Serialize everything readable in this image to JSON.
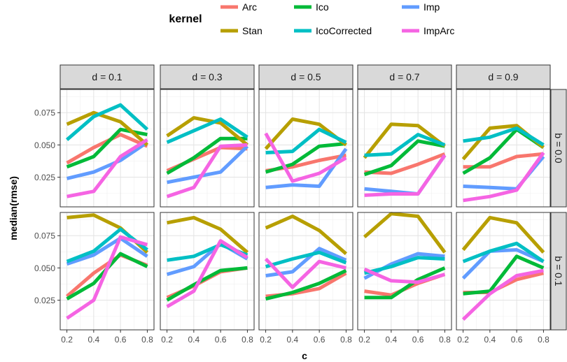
{
  "chart_data": {
    "type": "line",
    "legend": {
      "title": "kernel",
      "position": "top",
      "entries": [
        {
          "name": "Arc",
          "color": "#F8766D"
        },
        {
          "name": "Ico",
          "color": "#00BA38"
        },
        {
          "name": "Imp",
          "color": "#619CFF"
        },
        {
          "name": "Stan",
          "color": "#B79F00"
        },
        {
          "name": "IcoCorrected",
          "color": "#00BFC4"
        },
        {
          "name": "ImpArc",
          "color": "#F564E3"
        }
      ]
    },
    "xlabel": "c",
    "ylabel": "median(rmse)",
    "x": [
      0.2,
      0.4,
      0.6,
      0.8
    ],
    "xticks": [
      "0.2",
      "0.4",
      "0.6",
      "0.8"
    ],
    "xlim": [
      0.15,
      0.85
    ],
    "yticks": [
      "0.025",
      "0.050",
      "0.075"
    ],
    "ytick_values": [
      0.025,
      0.05,
      0.075
    ],
    "ylim": [
      0.002,
      0.093
    ],
    "grid": true,
    "col_facets": [
      "d = 0.1",
      "d = 0.3",
      "d = 0.5",
      "d = 0.7",
      "d = 0.9"
    ],
    "row_facets": [
      "b = 0.0",
      "b = 0.1"
    ],
    "panels": [
      [
        {
          "Arc": [
            0.036,
            0.048,
            0.058,
            0.049
          ],
          "Ico": [
            0.033,
            0.041,
            0.062,
            0.058
          ],
          "Imp": [
            0.024,
            0.029,
            0.038,
            0.052
          ],
          "Stan": [
            0.066,
            0.075,
            0.068,
            0.05
          ],
          "IcoCorrected": [
            0.054,
            0.072,
            0.081,
            0.062
          ],
          "ImpArc": [
            0.01,
            0.014,
            0.041,
            0.054
          ]
        },
        {
          "Arc": [
            0.03,
            0.039,
            0.048,
            0.047
          ],
          "Ico": [
            0.028,
            0.04,
            0.055,
            0.055
          ],
          "Imp": [
            0.021,
            0.025,
            0.029,
            0.049
          ],
          "Stan": [
            0.057,
            0.071,
            0.067,
            0.05
          ],
          "IcoCorrected": [
            0.052,
            0.061,
            0.07,
            0.056
          ],
          "ImpArc": [
            0.01,
            0.017,
            0.049,
            0.05
          ]
        },
        {
          "Arc": [
            0.03,
            0.033,
            0.038,
            0.042
          ],
          "Ico": [
            0.029,
            0.035,
            0.049,
            0.051
          ],
          "Imp": [
            0.017,
            0.019,
            0.018,
            0.047
          ],
          "Stan": [
            0.047,
            0.07,
            0.066,
            0.05
          ],
          "IcoCorrected": [
            0.044,
            0.045,
            0.062,
            0.052
          ],
          "ImpArc": [
            0.059,
            0.022,
            0.028,
            0.04
          ]
        },
        {
          "Arc": [
            0.029,
            0.028,
            0.035,
            0.043
          ],
          "Ico": [
            0.027,
            0.034,
            0.053,
            0.049
          ],
          "Imp": [
            0.016,
            0.014,
            0.012,
            0.042
          ],
          "Stan": [
            0.04,
            0.066,
            0.065,
            0.049
          ],
          "IcoCorrected": [
            0.042,
            0.043,
            0.058,
            0.05
          ],
          "ImpArc": [
            0.011,
            0.012,
            0.012,
            0.042
          ]
        },
        {
          "Arc": [
            0.033,
            0.033,
            0.041,
            0.043
          ],
          "Ico": [
            0.028,
            0.04,
            0.062,
            0.048
          ],
          "Imp": [
            0.018,
            0.017,
            0.016,
            0.041
          ],
          "Stan": [
            0.039,
            0.063,
            0.065,
            0.048
          ],
          "IcoCorrected": [
            0.053,
            0.056,
            0.063,
            0.05
          ],
          "ImpArc": [
            0.007,
            0.01,
            0.015,
            0.044
          ]
        }
      ],
      [
        {
          "Arc": [
            0.028,
            0.046,
            0.06,
            0.052
          ],
          "Ico": [
            0.026,
            0.038,
            0.061,
            0.051
          ],
          "Imp": [
            0.053,
            0.06,
            0.073,
            0.059
          ],
          "Stan": [
            0.089,
            0.091,
            0.081,
            0.062
          ],
          "IcoCorrected": [
            0.055,
            0.063,
            0.08,
            0.064
          ],
          "ImpArc": [
            0.011,
            0.025,
            0.074,
            0.068
          ]
        },
        {
          "Arc": [
            0.027,
            0.036,
            0.047,
            0.05
          ],
          "Ico": [
            0.025,
            0.037,
            0.048,
            0.05
          ],
          "Imp": [
            0.045,
            0.051,
            0.069,
            0.057
          ],
          "Stan": [
            0.085,
            0.089,
            0.08,
            0.062
          ],
          "IcoCorrected": [
            0.056,
            0.059,
            0.068,
            0.06
          ],
          "ImpArc": [
            0.02,
            0.032,
            0.071,
            0.058
          ]
        },
        {
          "Arc": [
            0.028,
            0.03,
            0.034,
            0.046
          ],
          "Ico": [
            0.026,
            0.031,
            0.038,
            0.048
          ],
          "Imp": [
            0.044,
            0.047,
            0.065,
            0.056
          ],
          "Stan": [
            0.081,
            0.09,
            0.079,
            0.061
          ],
          "IcoCorrected": [
            0.051,
            0.057,
            0.062,
            0.054
          ],
          "ImpArc": [
            0.057,
            0.035,
            0.055,
            0.05
          ]
        },
        {
          "Arc": [
            0.032,
            0.029,
            0.038,
            0.045
          ],
          "Ico": [
            0.027,
            0.027,
            0.041,
            0.05
          ],
          "Imp": [
            0.042,
            0.053,
            0.061,
            0.059
          ],
          "Stan": [
            0.074,
            0.092,
            0.09,
            0.062
          ],
          "IcoCorrected": [
            0.046,
            0.051,
            0.058,
            0.057
          ],
          "ImpArc": [
            0.049,
            0.04,
            0.039,
            0.045
          ]
        },
        {
          "Arc": [
            0.031,
            0.031,
            0.041,
            0.046
          ],
          "Ico": [
            0.03,
            0.032,
            0.059,
            0.05
          ],
          "Imp": [
            0.042,
            0.063,
            0.064,
            0.055
          ],
          "Stan": [
            0.064,
            0.089,
            0.085,
            0.062
          ],
          "IcoCorrected": [
            0.055,
            0.063,
            0.069,
            0.055
          ],
          "ImpArc": [
            0.01,
            0.03,
            0.044,
            0.048
          ]
        }
      ]
    ]
  }
}
